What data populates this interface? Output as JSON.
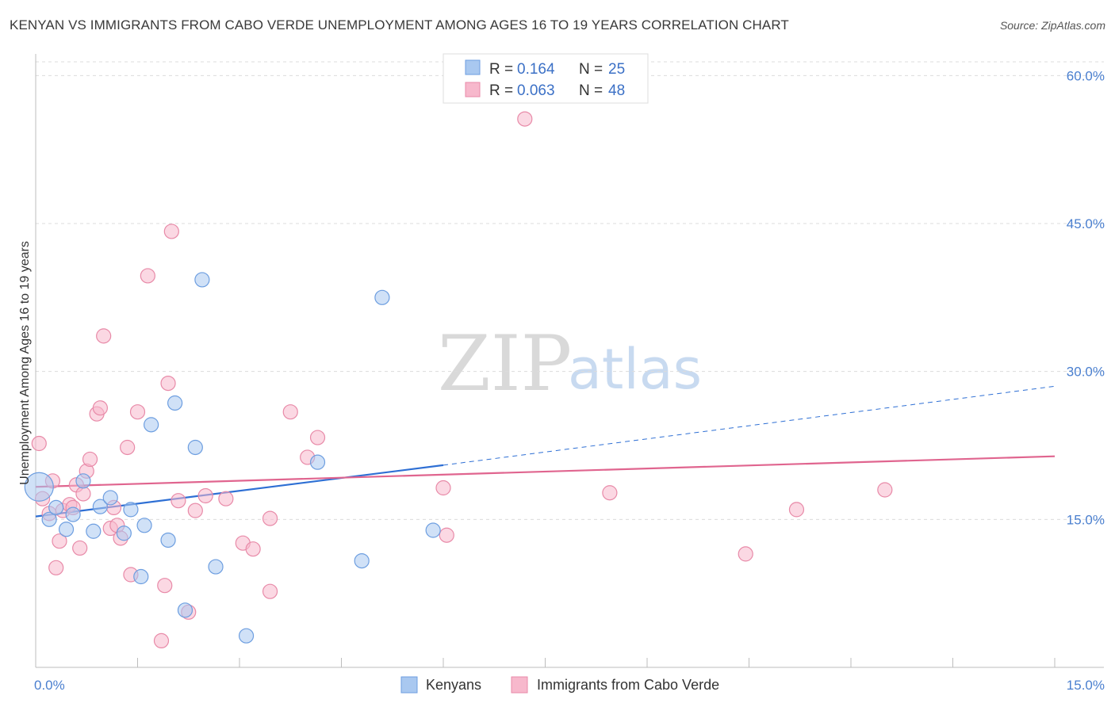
{
  "title": "KENYAN VS IMMIGRANTS FROM CABO VERDE UNEMPLOYMENT AMONG AGES 16 TO 19 YEARS CORRELATION CHART",
  "source": "Source: ZipAtlas.com",
  "watermark": {
    "zip": "ZIP",
    "atlas": "atlas"
  },
  "legend_box": {
    "rows": [
      {
        "r_label": "R =",
        "r_value": "0.164",
        "n_label": "N =",
        "n_value": "25",
        "color": "#a9c8f0",
        "stroke": "#6d9ee0"
      },
      {
        "r_label": "R =",
        "r_value": "0.063",
        "n_label": "N =",
        "n_value": "48",
        "color": "#f7b8cc",
        "stroke": "#e88aa8"
      }
    ]
  },
  "chart_data": {
    "type": "scatter",
    "title": "KENYAN VS IMMIGRANTS FROM CABO VERDE UNEMPLOYMENT AMONG AGES 16 TO 19 YEARS CORRELATION CHART",
    "xlabel": "",
    "ylabel": "Unemployment Among Ages 16 to 19 years",
    "xlim": [
      0,
      15
    ],
    "ylim": [
      0,
      63
    ],
    "x_tick_labels": [
      "0.0%",
      "15.0%"
    ],
    "y_ticks": [
      15,
      30,
      45,
      60
    ],
    "y_tick_labels": [
      "15.0%",
      "30.0%",
      "45.0%",
      "60.0%"
    ],
    "grid": true,
    "legend_placement": "bottom",
    "series": [
      {
        "name": "Kenyans",
        "color": "#a9c8f0",
        "stroke": "#6d9ee0",
        "line_color": "#2e6fd4",
        "trend": {
          "x0": 0.0,
          "y0": 15.3,
          "x1": 6.0,
          "y1": 20.5,
          "dash_x1": 15.0,
          "dash_y1": 28.5
        },
        "points": [
          {
            "x": 0.05,
            "y": 18.3,
            "big": true
          },
          {
            "x": 0.2,
            "y": 15.0
          },
          {
            "x": 0.3,
            "y": 16.2
          },
          {
            "x": 0.45,
            "y": 14.0
          },
          {
            "x": 0.55,
            "y": 15.5
          },
          {
            "x": 0.7,
            "y": 18.9
          },
          {
            "x": 0.85,
            "y": 13.8
          },
          {
            "x": 0.95,
            "y": 16.3
          },
          {
            "x": 1.1,
            "y": 17.2
          },
          {
            "x": 1.3,
            "y": 13.6
          },
          {
            "x": 1.4,
            "y": 16.0
          },
          {
            "x": 1.55,
            "y": 9.2
          },
          {
            "x": 1.6,
            "y": 14.4
          },
          {
            "x": 1.7,
            "y": 24.6
          },
          {
            "x": 1.95,
            "y": 12.9
          },
          {
            "x": 2.05,
            "y": 26.8
          },
          {
            "x": 2.2,
            "y": 5.8
          },
          {
            "x": 2.35,
            "y": 22.3
          },
          {
            "x": 2.45,
            "y": 39.3
          },
          {
            "x": 2.65,
            "y": 10.2
          },
          {
            "x": 3.1,
            "y": 3.2
          },
          {
            "x": 4.15,
            "y": 20.8
          },
          {
            "x": 4.8,
            "y": 10.8
          },
          {
            "x": 5.1,
            "y": 37.5
          },
          {
            "x": 5.85,
            "y": 13.9
          }
        ]
      },
      {
        "name": "Immigrants from Cabo Verde",
        "color": "#f7b8cc",
        "stroke": "#e88aa8",
        "line_color": "#e0658f",
        "trend": {
          "x0": 0.0,
          "y0": 18.3,
          "x1": 15.0,
          "y1": 21.4
        },
        "points": [
          {
            "x": 0.05,
            "y": 22.7
          },
          {
            "x": 0.1,
            "y": 17.1
          },
          {
            "x": 0.2,
            "y": 15.6
          },
          {
            "x": 0.25,
            "y": 18.9
          },
          {
            "x": 0.3,
            "y": 10.1
          },
          {
            "x": 0.35,
            "y": 12.8
          },
          {
            "x": 0.4,
            "y": 15.9
          },
          {
            "x": 0.5,
            "y": 16.5
          },
          {
            "x": 0.55,
            "y": 16.2
          },
          {
            "x": 0.6,
            "y": 18.5
          },
          {
            "x": 0.65,
            "y": 12.1
          },
          {
            "x": 0.7,
            "y": 17.6
          },
          {
            "x": 0.75,
            "y": 19.9
          },
          {
            "x": 0.8,
            "y": 21.1
          },
          {
            "x": 0.9,
            "y": 25.7
          },
          {
            "x": 0.95,
            "y": 26.3
          },
          {
            "x": 1.0,
            "y": 33.6
          },
          {
            "x": 1.1,
            "y": 14.1
          },
          {
            "x": 1.15,
            "y": 16.2
          },
          {
            "x": 1.2,
            "y": 14.4
          },
          {
            "x": 1.25,
            "y": 13.1
          },
          {
            "x": 1.35,
            "y": 22.3
          },
          {
            "x": 1.4,
            "y": 9.4
          },
          {
            "x": 1.5,
            "y": 25.9
          },
          {
            "x": 1.65,
            "y": 39.7
          },
          {
            "x": 1.85,
            "y": 2.7
          },
          {
            "x": 1.9,
            "y": 8.3
          },
          {
            "x": 1.95,
            "y": 28.8
          },
          {
            "x": 2.0,
            "y": 44.2
          },
          {
            "x": 2.1,
            "y": 16.9
          },
          {
            "x": 2.25,
            "y": 5.6
          },
          {
            "x": 2.35,
            "y": 15.9
          },
          {
            "x": 2.5,
            "y": 17.4
          },
          {
            "x": 2.8,
            "y": 17.1
          },
          {
            "x": 3.05,
            "y": 12.6
          },
          {
            "x": 3.2,
            "y": 12.0
          },
          {
            "x": 3.45,
            "y": 7.7
          },
          {
            "x": 3.45,
            "y": 15.1
          },
          {
            "x": 3.75,
            "y": 25.9
          },
          {
            "x": 4.0,
            "y": 21.3
          },
          {
            "x": 4.15,
            "y": 23.3
          },
          {
            "x": 6.0,
            "y": 18.2
          },
          {
            "x": 6.05,
            "y": 13.4
          },
          {
            "x": 7.2,
            "y": 55.6
          },
          {
            "x": 8.45,
            "y": 17.7
          },
          {
            "x": 10.45,
            "y": 11.5
          },
          {
            "x": 11.2,
            "y": 16.0
          },
          {
            "x": 12.5,
            "y": 18.0
          }
        ]
      }
    ]
  }
}
